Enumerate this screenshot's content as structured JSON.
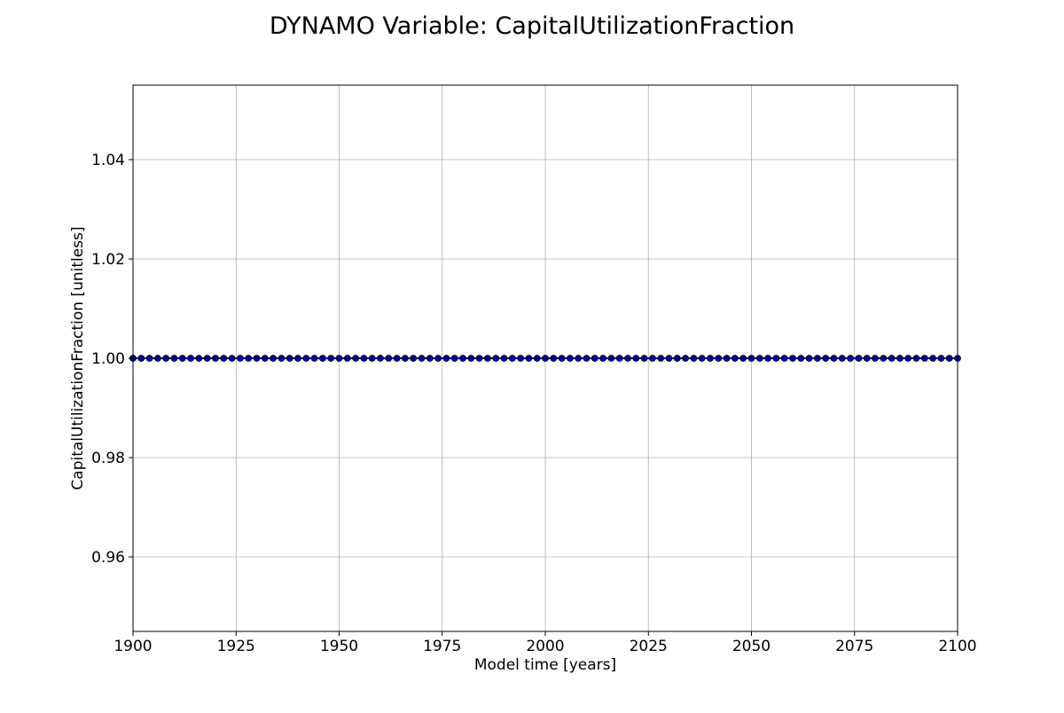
{
  "chart_data": {
    "type": "line",
    "title": "DYNAMO Variable: CapitalUtilizationFraction",
    "xlabel": "Model time [years]",
    "ylabel": "CapitalUtilizationFraction [unitless]",
    "xlim": [
      1900,
      2100
    ],
    "ylim": [
      0.945,
      1.055
    ],
    "x_ticks": [
      "1900",
      "1925",
      "1950",
      "1975",
      "2000",
      "2025",
      "2050",
      "2075",
      "2100"
    ],
    "y_ticks": [
      "0.96",
      "0.98",
      "1.00",
      "1.02",
      "1.04"
    ],
    "grid": true,
    "series": [
      {
        "x_start": 1900,
        "x_end": 2100,
        "x_step": 2,
        "constant_value": 1.0,
        "color": "#00008b",
        "marker": "circle"
      }
    ]
  }
}
